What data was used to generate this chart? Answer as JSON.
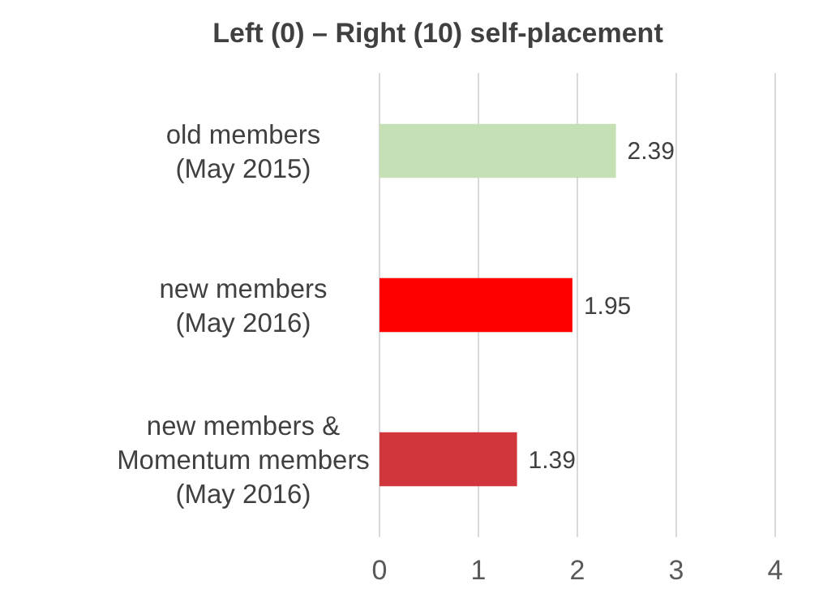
{
  "chart_data": {
    "type": "bar",
    "orientation": "horizontal",
    "title": "Left (0) – Right (10) self-placement",
    "categories": [
      "old members\n(May 2015)",
      "new members\n(May 2016)",
      "new members &\nMomentum members\n(May 2016)"
    ],
    "values": [
      2.39,
      1.95,
      1.39
    ],
    "colors": [
      "#c5e0b4",
      "#ff0000",
      "#d0363b"
    ],
    "data_labels": true,
    "xlim": [
      0,
      4
    ],
    "xticks": [
      0,
      1,
      2,
      3,
      4
    ],
    "grid": "x"
  }
}
